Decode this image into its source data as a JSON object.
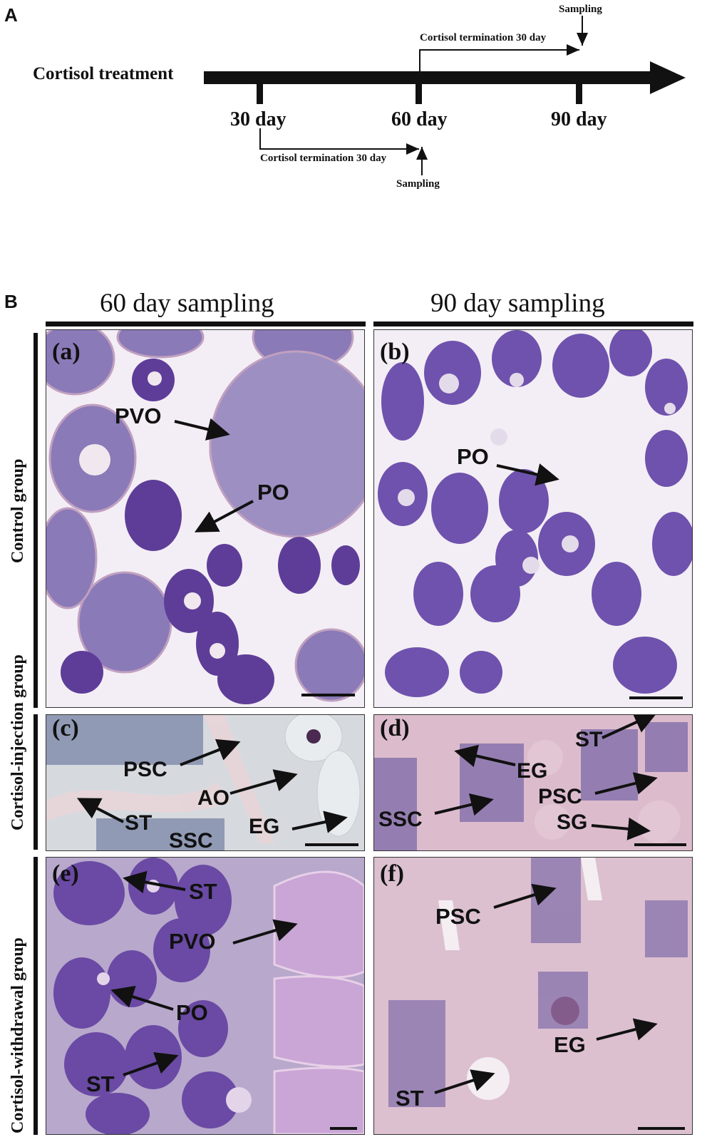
{
  "panel_a": {
    "letter": "A",
    "treatment_label": "Cortisol treatment",
    "days": [
      "30 day",
      "60 day",
      "90 day"
    ],
    "termination_upper": "Cortisol termination 30 day",
    "termination_lower": "Cortisol termination 30 day",
    "sampling_upper": "Sampling",
    "sampling_lower": "Sampling"
  },
  "panel_b": {
    "letter": "B",
    "col_headers": [
      "60 day sampling",
      "90 day sampling"
    ],
    "row_labels": [
      "Control group",
      "Cortisol-injection group",
      "Cortisol-withdrawal group"
    ],
    "panels": {
      "a": {
        "tag": "(a)",
        "labels": [
          "PVO",
          "PO"
        ]
      },
      "b": {
        "tag": "(b)",
        "labels": [
          "PO"
        ]
      },
      "c": {
        "tag": "(c)",
        "labels": [
          "PSC",
          "AO",
          "ST",
          "EG",
          "SSC"
        ]
      },
      "d": {
        "tag": "(d)",
        "labels": [
          "ST",
          "EG",
          "PSC",
          "SSC",
          "SG"
        ]
      },
      "e": {
        "tag": "(e)",
        "labels": [
          "ST",
          "PVO",
          "PO",
          "ST"
        ]
      },
      "f": {
        "tag": "(f)",
        "labels": [
          "PSC",
          "EG",
          "ST"
        ]
      }
    }
  },
  "colors": {
    "ovary_stain": "#7a5bb0",
    "testis_stain": "#d8b6c8",
    "cortisol_bg": "#d9dde0"
  }
}
